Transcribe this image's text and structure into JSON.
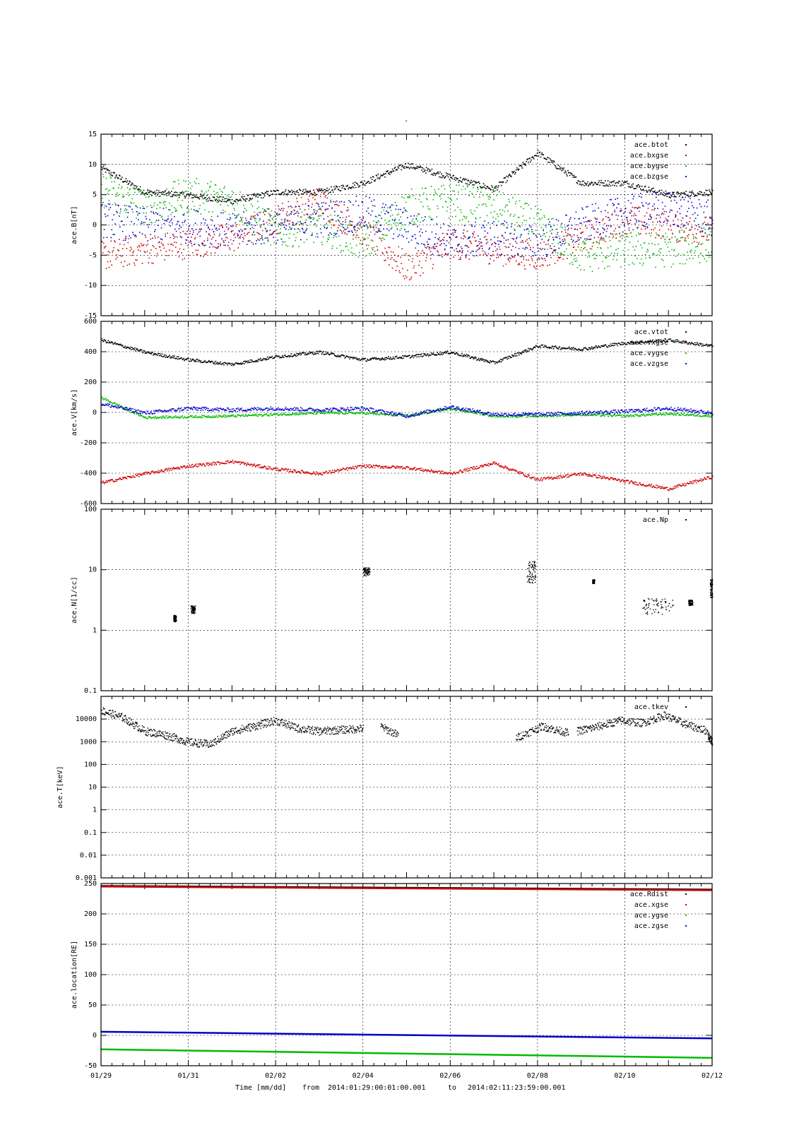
{
  "figure": {
    "title": "-",
    "xlabel": "Time [mm/dd]",
    "range_from_label": "from",
    "range_start": "2014:01:29:00:01:00.001",
    "range_to_label": "to",
    "range_end": "2014:02:11:23:59:00.001"
  },
  "colors": {
    "black": "#000000",
    "red": "#cc0000",
    "green": "#00bb00",
    "blue": "#0000cc"
  },
  "chart_data": [
    {
      "type": "scatter",
      "ylabel": "ace.B[nT]",
      "ylim": [
        -15,
        15
      ],
      "yticks": [
        -15,
        -10,
        -5,
        0,
        5,
        10,
        15
      ],
      "yscale": "linear",
      "grid": true,
      "legend_position": "top-right",
      "x": [
        "01/29",
        "01/30",
        "01/31",
        "02/01",
        "02/02",
        "02/03",
        "02/04",
        "02/05",
        "02/06",
        "02/07",
        "02/08",
        "02/09",
        "02/10",
        "02/11",
        "02/12"
      ],
      "series": [
        {
          "name": "ace.btot",
          "color": "#000000",
          "spread": 0.5,
          "values": [
            9.5,
            5.5,
            5,
            4,
            5.5,
            5.5,
            7,
            10,
            8,
            6,
            12,
            7,
            7,
            5,
            5.5
          ]
        },
        {
          "name": "ace.bxgse",
          "color": "#cc0000",
          "spread": 2.5,
          "values": [
            -5,
            -4,
            -3,
            -2,
            1,
            4,
            -1,
            -7,
            -3,
            -4,
            -5,
            -2,
            1,
            0,
            -1
          ]
        },
        {
          "name": "ace.bygse",
          "color": "#00bb00",
          "spread": 3,
          "values": [
            6,
            3,
            5,
            4,
            -1,
            0,
            -3,
            3,
            4,
            3,
            0,
            -5,
            -4,
            -4,
            -3
          ]
        },
        {
          "name": "ace.bzgse",
          "color": "#0000cc",
          "spread": 3,
          "values": [
            1,
            0,
            0,
            -1,
            0,
            1,
            2,
            0,
            -3,
            -2,
            -3,
            0,
            2,
            3,
            1
          ]
        }
      ]
    },
    {
      "type": "scatter",
      "ylabel": "ace.V[km/s]",
      "ylim": [
        -600,
        600
      ],
      "yticks": [
        -600,
        -400,
        -200,
        0,
        200,
        400,
        600
      ],
      "yscale": "linear",
      "grid": true,
      "legend_position": "top-right",
      "x": [
        "01/29",
        "01/30",
        "01/31",
        "02/01",
        "02/02",
        "02/03",
        "02/04",
        "02/05",
        "02/06",
        "02/07",
        "02/08",
        "02/09",
        "02/10",
        "02/11",
        "02/12"
      ],
      "series": [
        {
          "name": "ace.vtot",
          "color": "#000000",
          "spread": 10,
          "values": [
            480,
            400,
            350,
            320,
            370,
            400,
            350,
            370,
            400,
            330,
            440,
            420,
            460,
            480,
            440
          ]
        },
        {
          "name": "ace.vxgse",
          "color": "#cc0000",
          "spread": 10,
          "values": [
            -460,
            -400,
            -350,
            -320,
            -370,
            -400,
            -350,
            -360,
            -400,
            -330,
            -440,
            -400,
            -450,
            -500,
            -420
          ]
        },
        {
          "name": "ace.vygse",
          "color": "#00bb00",
          "spread": 8,
          "values": [
            100,
            -30,
            -25,
            -20,
            -10,
            0,
            0,
            -20,
            30,
            -20,
            -20,
            -10,
            -20,
            -5,
            -20
          ]
        },
        {
          "name": "ace.vzgse",
          "color": "#0000cc",
          "spread": 12,
          "values": [
            60,
            0,
            30,
            20,
            30,
            20,
            30,
            -20,
            40,
            -10,
            -10,
            0,
            10,
            30,
            0
          ]
        }
      ]
    },
    {
      "type": "scatter",
      "ylabel": "ace.N[1/cc]",
      "ylim": [
        0.1,
        100
      ],
      "yticks": [
        0.1,
        1,
        10,
        100
      ],
      "yscale": "log",
      "grid": true,
      "legend_position": "top-right",
      "series": [
        {
          "name": "ace.Np",
          "color": "#000000",
          "clusters": [
            {
              "x0": 1.65,
              "x1": 1.72,
              "y0": 1.4,
              "y1": 1.8
            },
            {
              "x0": 2.05,
              "x1": 2.15,
              "y0": 1.9,
              "y1": 2.6
            },
            {
              "x0": 6.0,
              "x1": 6.15,
              "y0": 8.0,
              "y1": 11.0
            },
            {
              "x0": 9.75,
              "x1": 9.95,
              "y0": 6.0,
              "y1": 14.0
            },
            {
              "x0": 11.25,
              "x1": 11.3,
              "y0": 6.0,
              "y1": 7.0
            },
            {
              "x0": 12.4,
              "x1": 13.1,
              "y0": 1.8,
              "y1": 3.4
            },
            {
              "x0": 13.45,
              "x1": 13.55,
              "y0": 2.6,
              "y1": 3.2
            },
            {
              "x0": 13.95,
              "x1": 14.0,
              "y0": 3.5,
              "y1": 7.0
            }
          ]
        }
      ]
    },
    {
      "type": "scatter",
      "ylabel": "ace.T[keV]",
      "ylim": [
        0.001,
        100000
      ],
      "yticks": [
        0.001,
        0.01,
        0.1,
        1,
        10,
        100,
        1000,
        10000
      ],
      "ytick_labels": [
        "0.001",
        "0.01",
        "0.1",
        "1",
        "10",
        "100",
        "1000",
        "10000"
      ],
      "yscale": "log",
      "grid": true,
      "legend_position": "top-right",
      "series": [
        {
          "name": "ace.tkev",
          "color": "#000000",
          "segments": [
            {
              "x0": 0.0,
              "x1": 6.0,
              "values": [
                25000,
                12000,
                3000,
                2000,
                1000,
                800,
                3000,
                5000,
                9000,
                4000,
                3000,
                3500,
                4000
              ]
            },
            {
              "x0": 6.4,
              "x1": 6.8,
              "values": [
                5000,
                2000
              ]
            },
            {
              "x0": 9.5,
              "x1": 10.7,
              "values": [
                1500,
                5000,
                2500
              ]
            },
            {
              "x0": 10.9,
              "x1": 13.9,
              "values": [
                3000,
                5000,
                9000,
                7000,
                15000,
                6000,
                3000
              ]
            },
            {
              "x0": 13.9,
              "x1": 14.0,
              "values": [
                2000,
                1000
              ]
            }
          ]
        }
      ]
    },
    {
      "type": "line",
      "ylabel": "ace.location[RE]",
      "ylim": [
        -50,
        250
      ],
      "yticks": [
        -50,
        0,
        50,
        100,
        150,
        200,
        250
      ],
      "yscale": "linear",
      "grid": true,
      "legend_position": "top-right",
      "x": [
        "01/29",
        "02/12"
      ],
      "series": [
        {
          "name": "ace.Rdist",
          "color": "#000000",
          "values": [
            246,
            240
          ]
        },
        {
          "name": "ace.xgse",
          "color": "#cc0000",
          "values": [
            245,
            239
          ]
        },
        {
          "name": "ace.ygse",
          "color": "#00bb00",
          "values": [
            -23,
            -37
          ]
        },
        {
          "name": "ace.zgse",
          "color": "#0000cc",
          "values": [
            6,
            -5
          ]
        }
      ]
    }
  ],
  "xaxis": {
    "range_days": 14,
    "ticks": [
      {
        "day": 0,
        "label": "01/29"
      },
      {
        "day": 2,
        "label": "01/31"
      },
      {
        "day": 4,
        "label": "02/02"
      },
      {
        "day": 6,
        "label": "02/04"
      },
      {
        "day": 8,
        "label": "02/06"
      },
      {
        "day": 10,
        "label": "02/08"
      },
      {
        "day": 12,
        "label": "02/10"
      },
      {
        "day": 14,
        "label": "02/12"
      }
    ]
  }
}
